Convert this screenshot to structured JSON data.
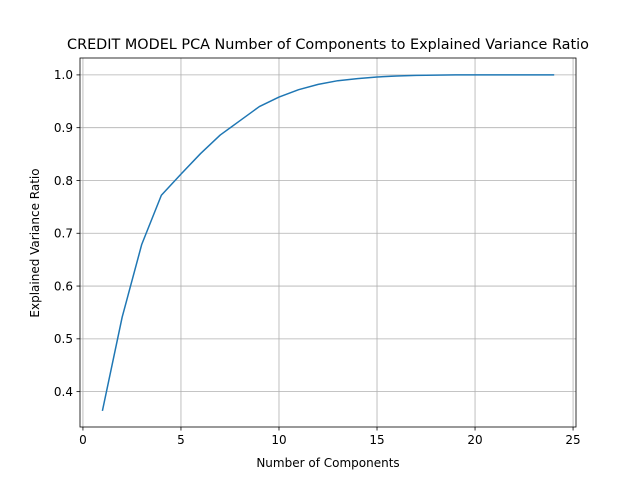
{
  "chart_data": {
    "type": "line",
    "title": "CREDIT MODEL PCA Number of Components to Explained Variance Ratio",
    "xlabel": "Number of Components",
    "ylabel": "Explained Variance Ratio",
    "xlim": [
      -0.15,
      25.15
    ],
    "ylim": [
      0.333,
      1.032
    ],
    "xticks": [
      0,
      5,
      10,
      15,
      20,
      25
    ],
    "xtick_labels": [
      "0",
      "5",
      "10",
      "15",
      "20",
      "25"
    ],
    "yticks": [
      0.4,
      0.5,
      0.6,
      0.7,
      0.8,
      0.9,
      1.0
    ],
    "ytick_labels": [
      "0.4",
      "0.5",
      "0.6",
      "0.7",
      "0.8",
      "0.9",
      "1.0"
    ],
    "grid": true,
    "series": [
      {
        "color": "#1f77b4",
        "x": [
          1,
          2,
          3,
          4,
          5,
          6,
          7,
          8,
          9,
          10,
          11,
          12,
          13,
          14,
          15,
          16,
          17,
          18,
          19,
          20,
          21,
          22,
          23,
          24
        ],
        "y": [
          0.365,
          0.541,
          0.679,
          0.772,
          0.812,
          0.851,
          0.886,
          0.913,
          0.94,
          0.958,
          0.972,
          0.982,
          0.989,
          0.993,
          0.996,
          0.998,
          0.999,
          0.9995,
          1.0,
          1.0,
          1.0,
          1.0,
          1.0,
          1.0
        ]
      }
    ]
  }
}
